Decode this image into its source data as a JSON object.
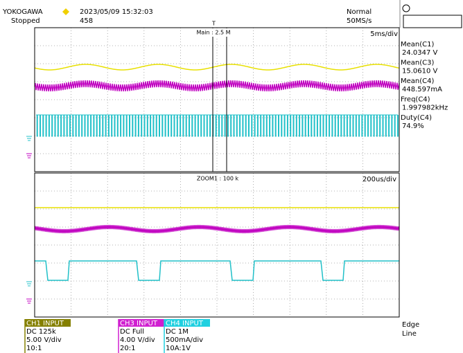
{
  "header": {
    "brand": "YOKOGAWA",
    "datetime": "2023/05/09 15:32:03",
    "status": "Stopped",
    "count": "458",
    "mode": "Normal",
    "sample_rate": "50MS/s"
  },
  "trigger_marker": "T",
  "main": {
    "label": "Main : 2.5 M",
    "timebase": "5ms/div"
  },
  "zoom": {
    "label": "ZOOM1 : 100 k",
    "timebase": "200us/div"
  },
  "measurements": [
    {
      "label": "Mean(C1)",
      "value": "24.0347 V"
    },
    {
      "label": "Mean(C3)",
      "value": "15.0610 V"
    },
    {
      "label": "Mean(C4)",
      "value": "448.597mA"
    },
    {
      "label": "Freq(C4)",
      "value": "1.997982kHz"
    },
    {
      "label": "Duty(C4)",
      "value": "74.9%"
    }
  ],
  "channels": [
    {
      "name": "CH1 INPUT",
      "coupling": "DC 125k",
      "scale": "5.00 V/div",
      "probe": "10:1"
    },
    {
      "name": "CH3 INPUT",
      "coupling": "DC Full",
      "scale": "4.00 V/div",
      "probe": "20:1"
    },
    {
      "name": "CH4 INPUT",
      "coupling": "DC 1M",
      "scale": "500mA/div",
      "probe": "10A:1V"
    }
  ],
  "trigger": {
    "type": "Edge",
    "source": "Line"
  }
}
